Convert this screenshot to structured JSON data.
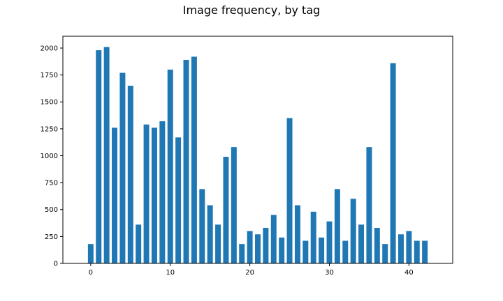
{
  "chart_data": {
    "type": "bar",
    "title": "Image frequency, by tag",
    "xlabel": "",
    "ylabel": "",
    "x": [
      0,
      1,
      2,
      3,
      4,
      5,
      6,
      7,
      8,
      9,
      10,
      11,
      12,
      13,
      14,
      15,
      16,
      17,
      18,
      19,
      20,
      21,
      22,
      23,
      24,
      25,
      26,
      27,
      28,
      29,
      30,
      31,
      32,
      33,
      34,
      35,
      36,
      37,
      38,
      39,
      40,
      41,
      42
    ],
    "values": [
      180,
      1980,
      2010,
      1260,
      1770,
      1650,
      360,
      1290,
      1260,
      1320,
      1800,
      1170,
      1890,
      1920,
      690,
      540,
      360,
      990,
      1080,
      180,
      300,
      270,
      330,
      450,
      240,
      1350,
      540,
      210,
      480,
      240,
      390,
      690,
      210,
      600,
      360,
      1080,
      330,
      180,
      1860,
      270,
      300,
      210,
      210
    ],
    "xlim": [
      -3.5,
      45.5
    ],
    "ylim": [
      0,
      2110
    ],
    "xticks": [
      0,
      10,
      20,
      30,
      40
    ],
    "yticks": [
      0,
      250,
      500,
      750,
      1000,
      1250,
      1500,
      1750,
      2000
    ],
    "bar_color": "#1f77b4",
    "grid": false,
    "legend": "none"
  }
}
